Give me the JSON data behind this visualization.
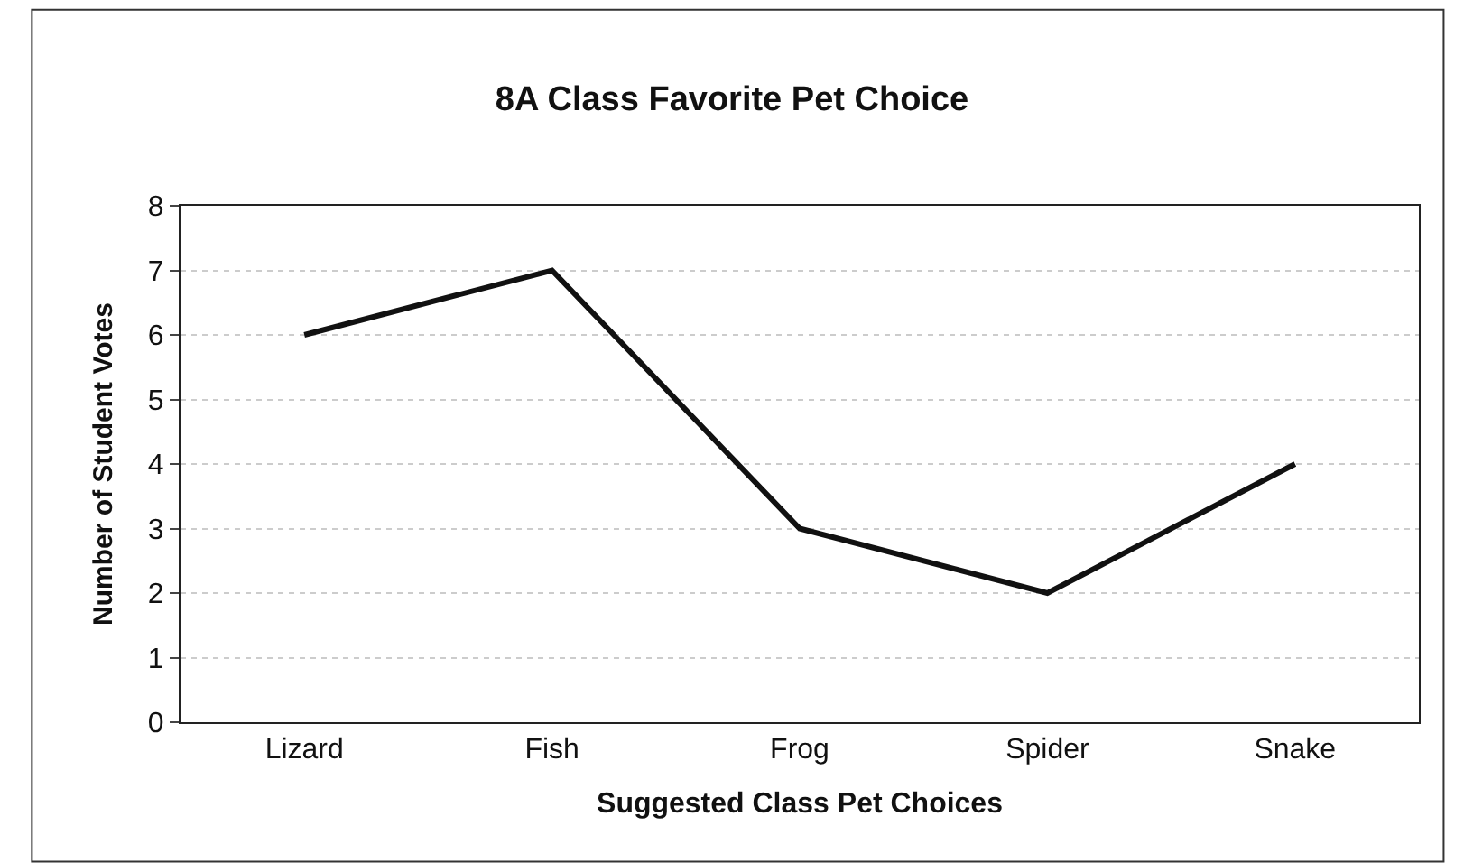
{
  "chart_data": {
    "type": "line",
    "title": "8A Class Favorite Pet Choice",
    "xlabel": "Suggested Class Pet Choices",
    "ylabel": "Number of Student Votes",
    "categories": [
      "Lizard",
      "Fish",
      "Frog",
      "Spider",
      "Snake"
    ],
    "series": [
      {
        "color": "#111111",
        "values": [
          6,
          7,
          3,
          2,
          4
        ]
      }
    ],
    "ylim": [
      0,
      8
    ],
    "yticks": [
      0,
      1,
      2,
      3,
      4,
      5,
      6,
      7,
      8
    ],
    "grid": "y",
    "marker": "none",
    "line_style": "solid"
  }
}
